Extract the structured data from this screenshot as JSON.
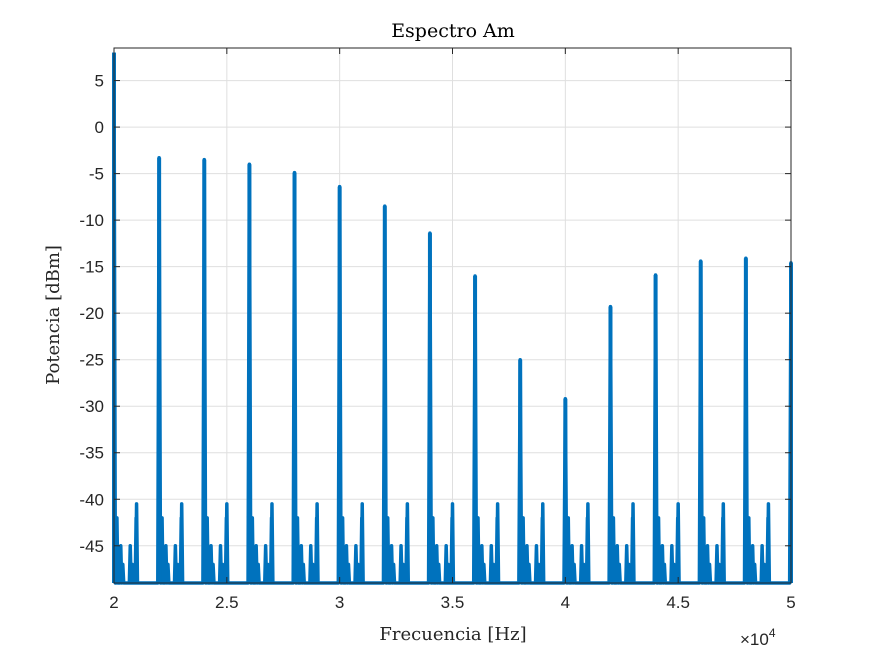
{
  "chart_data": {
    "type": "line",
    "title": "Espectro Am",
    "xlabel": "Frecuencia [Hz]",
    "ylabel": "Potencia [dBm]",
    "x_multiplier_label": "×10",
    "x_multiplier_exponent": "4",
    "xlim": [
      20000,
      50000
    ],
    "ylim": [
      -49,
      8.5
    ],
    "x_ticks": [
      20000,
      25000,
      30000,
      35000,
      40000,
      45000,
      50000
    ],
    "x_tick_labels": [
      "2",
      "2.5",
      "3",
      "3.5",
      "4",
      "4.5",
      "5"
    ],
    "y_ticks": [
      5,
      0,
      -5,
      -10,
      -15,
      -20,
      -25,
      -30,
      -35,
      -40,
      -45
    ],
    "y_tick_labels": [
      "5",
      "0",
      "-5",
      "-10",
      "-15",
      "-20",
      "-25",
      "-30",
      "-35",
      "-40",
      "-45"
    ],
    "grid": true,
    "noise_floor": -49,
    "secondary_peak_level": -40.5,
    "side_lobe_levels": [
      -42,
      -45,
      -47
    ],
    "series": [
      {
        "color": "#0072bd",
        "peaks": [
          {
            "x": 20000,
            "y": 8.0
          },
          {
            "x": 22000,
            "y": -3.3
          },
          {
            "x": 24000,
            "y": -3.5
          },
          {
            "x": 26000,
            "y": -4.0
          },
          {
            "x": 28000,
            "y": -4.9
          },
          {
            "x": 30000,
            "y": -6.4
          },
          {
            "x": 32000,
            "y": -8.5
          },
          {
            "x": 34000,
            "y": -11.4
          },
          {
            "x": 36000,
            "y": -16.0
          },
          {
            "x": 38000,
            "y": -25.0
          },
          {
            "x": 40000,
            "y": -29.2
          },
          {
            "x": 42000,
            "y": -19.3
          },
          {
            "x": 44000,
            "y": -15.9
          },
          {
            "x": 46000,
            "y": -14.4
          },
          {
            "x": 48000,
            "y": -14.1
          },
          {
            "x": 50000,
            "y": -14.6
          }
        ]
      }
    ]
  }
}
